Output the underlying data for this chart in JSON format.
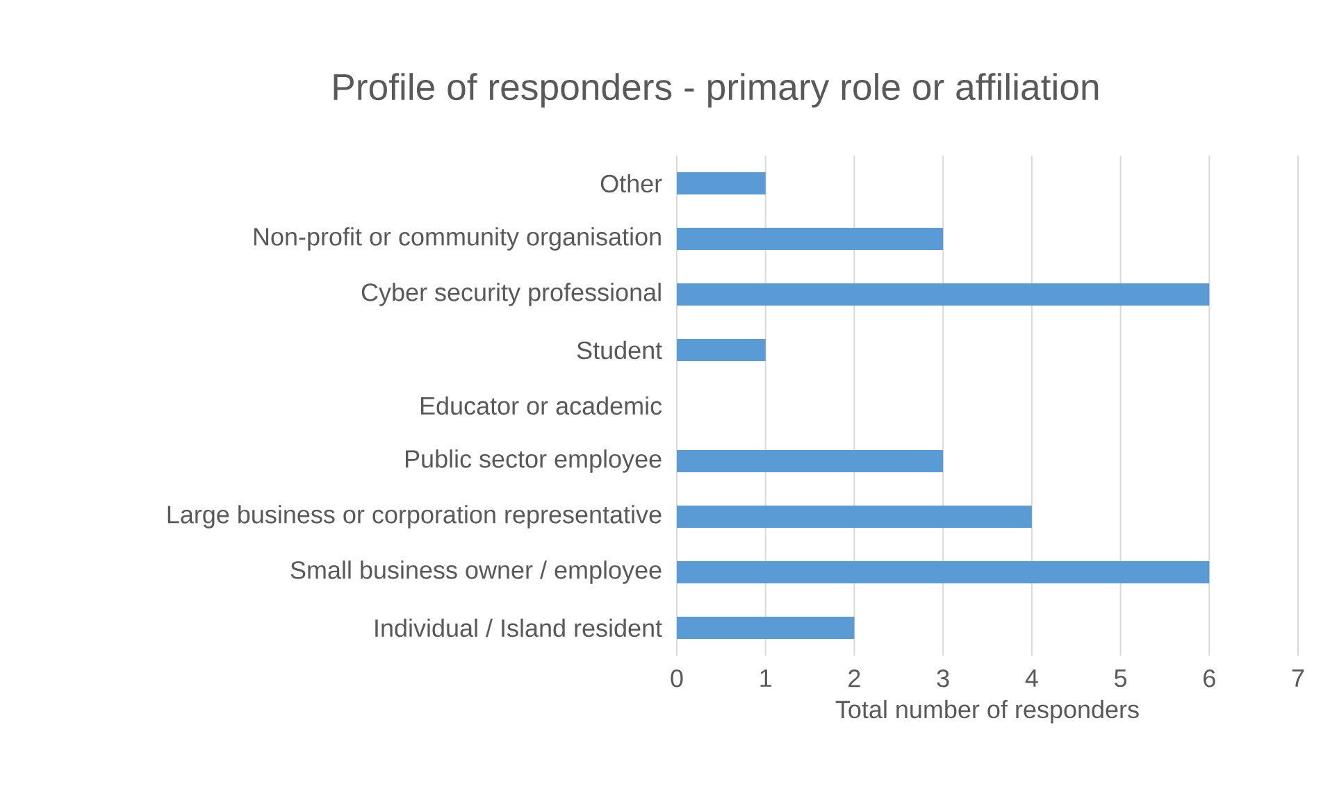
{
  "chart_data": {
    "type": "bar",
    "orientation": "horizontal",
    "title": "Profile of responders - primary role or affiliation",
    "xlabel": "Total number of responders",
    "categories": [
      "Other",
      "Non-profit or community organisation",
      "Cyber security professional",
      "Student",
      "Educator or academic",
      "Public sector employee",
      "Large business or corporation representative",
      "Small business owner / employee",
      "Individual / Island resident"
    ],
    "values": [
      1,
      3,
      6,
      1,
      0,
      3,
      4,
      6,
      2
    ],
    "color": "#5b9bd5",
    "xlim": [
      0,
      7
    ],
    "xticks": [
      0,
      1,
      2,
      3,
      4,
      5,
      6,
      7
    ],
    "grid": "x"
  }
}
